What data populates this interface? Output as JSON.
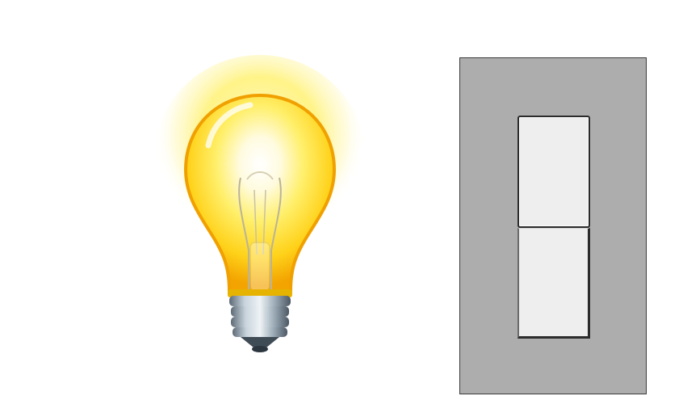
{
  "light": {
    "icon": "lightbulb-icon",
    "state": "on",
    "glow_color": "#fff27a",
    "glass_color": "#ffd21a",
    "base_color": "#8a9aa8"
  },
  "switch": {
    "icon": "rocker-switch",
    "state": "on",
    "plate_color": "#adadad",
    "rocker_color": "#eeeeee"
  }
}
